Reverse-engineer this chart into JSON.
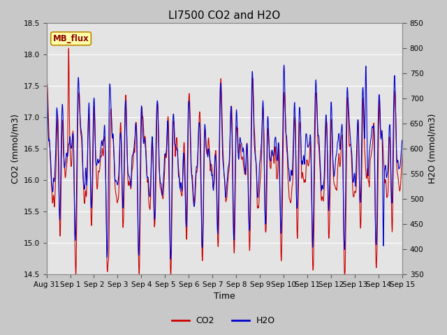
{
  "title": "LI7500 CO2 and H2O",
  "xlabel": "Time",
  "ylabel_left": "CO2 (mmol/m3)",
  "ylabel_right": "H2O (mmol/m3)",
  "annotation": "MB_flux",
  "co2_color": "#cc0000",
  "h2o_color": "#0000cc",
  "co2_lw": 0.8,
  "h2o_lw": 0.8,
  "ylim_left": [
    14.5,
    18.5
  ],
  "ylim_right": [
    350,
    850
  ],
  "xtick_labels": [
    "Aug 31",
    "Sep 1",
    "Sep 2",
    "Sep 3",
    "Sep 4",
    "Sep 5",
    "Sep 6",
    "Sep 7",
    "Sep 8",
    "Sep 9",
    "Sep 10",
    "Sep 11",
    "Sep 12",
    "Sep 13",
    "Sep 14",
    "Sep 15"
  ],
  "yticks_left": [
    14.5,
    15.0,
    15.5,
    16.0,
    16.5,
    17.0,
    17.5,
    18.0,
    18.5
  ],
  "yticks_right": [
    350,
    400,
    450,
    500,
    550,
    600,
    650,
    700,
    750,
    800,
    850
  ],
  "bg_color": "#c8c8c8",
  "plot_bg_color": "#e4e4e4",
  "title_fontsize": 11,
  "label_fontsize": 9,
  "tick_fontsize": 7.5,
  "legend_fontsize": 9,
  "n_days": 15.0,
  "pts_per_day": 96
}
